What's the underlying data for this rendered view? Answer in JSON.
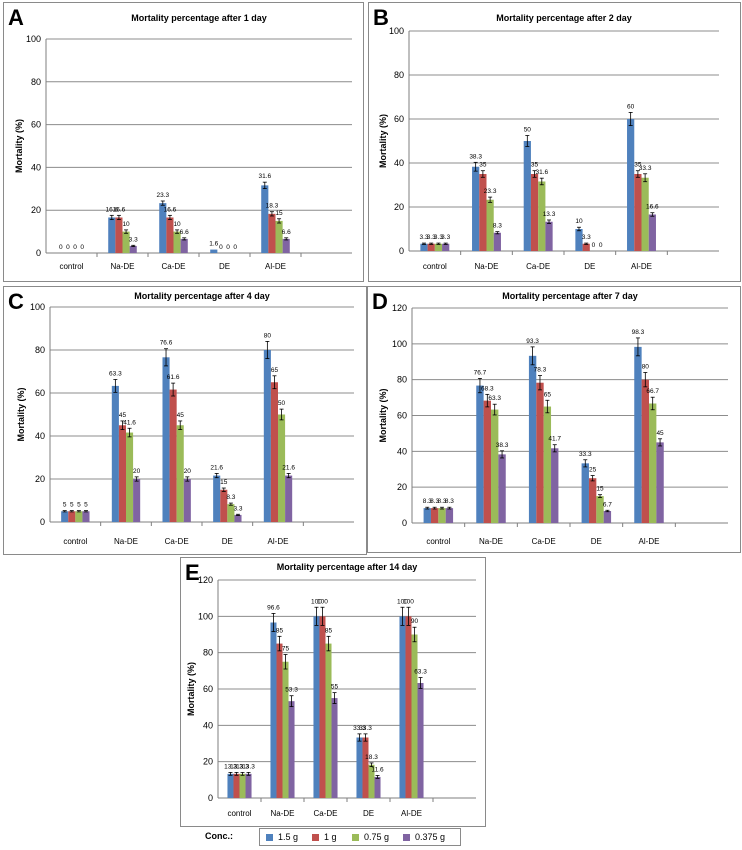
{
  "legend": {
    "title": "Conc.:",
    "items": [
      {
        "label": "1.5 g",
        "color": "#4f81bd"
      },
      {
        "label": "1 g",
        "color": "#c0504d"
      },
      {
        "label": "0.75 g",
        "color": "#9bbb59"
      },
      {
        "label": "0.375 g",
        "color": "#8064a2"
      }
    ]
  },
  "chart_data": [
    {
      "letter": "A",
      "type": "bar",
      "title": "Mortality percentage after 1 day",
      "xlabel": "",
      "ylabel": "Mortality (%)",
      "ylim": [
        0,
        100
      ],
      "yticks": [
        0,
        20,
        40,
        60,
        80,
        100
      ],
      "categories": [
        "control",
        "Na-DE",
        "Ca-DE",
        "DE",
        "Al-DE"
      ],
      "series": [
        {
          "name": "1.5 g",
          "values": [
            0,
            16.6,
            23.3,
            1.6,
            31.6
          ],
          "errors": [
            0,
            1,
            1,
            0,
            1.5
          ]
        },
        {
          "name": "1 g",
          "values": [
            0,
            16.6,
            16.6,
            0,
            18.3
          ],
          "errors": [
            0,
            1,
            1,
            0,
            1
          ]
        },
        {
          "name": "0.75 g",
          "values": [
            0,
            10,
            10,
            0,
            15
          ],
          "errors": [
            0,
            0.8,
            0.8,
            0,
            1
          ]
        },
        {
          "name": "0.375 g",
          "values": [
            0,
            3.3,
            6.6,
            0,
            6.6
          ],
          "errors": [
            0,
            0.3,
            0.5,
            0,
            0.5
          ]
        }
      ],
      "data_labels": [
        [
          "0",
          "16.6",
          "23.3",
          "1.6",
          "31.6"
        ],
        [
          "0",
          "16.6",
          "16.6",
          "0",
          "18.3"
        ],
        [
          "0",
          "10",
          "10",
          "0",
          "15"
        ],
        [
          "0",
          "3.3",
          "6.6",
          "0",
          "6.6"
        ]
      ]
    },
    {
      "letter": "B",
      "type": "bar",
      "title": "Mortality percentage after 2 day",
      "xlabel": "",
      "ylabel": "Mortality (%)",
      "ylim": [
        0,
        100
      ],
      "yticks": [
        0,
        20,
        40,
        60,
        80,
        100
      ],
      "categories": [
        "control",
        "Na-DE",
        "Ca-DE",
        "DE",
        "Al-DE"
      ],
      "series": [
        {
          "name": "1.5 g",
          "values": [
            3.3,
            38.3,
            50,
            10,
            60
          ],
          "errors": [
            0.3,
            2,
            2.5,
            0.8,
            3
          ]
        },
        {
          "name": "1 g",
          "values": [
            3.3,
            35,
            35,
            3.3,
            35
          ],
          "errors": [
            0.3,
            1.5,
            1.5,
            0.3,
            1.5
          ]
        },
        {
          "name": "0.75 g",
          "values": [
            3.3,
            23.3,
            31.6,
            0,
            33.3
          ],
          "errors": [
            0.3,
            1.2,
            1.5,
            0,
            1.8
          ]
        },
        {
          "name": "0.375 g",
          "values": [
            3.3,
            8.3,
            13.3,
            0,
            16.6
          ],
          "errors": [
            0.3,
            0.5,
            0.8,
            0,
            0.8
          ]
        }
      ],
      "data_labels": [
        [
          "3.3",
          "38.3",
          "50",
          "10",
          "60"
        ],
        [
          "3.3",
          "35",
          "35",
          "3.3",
          "35"
        ],
        [
          "3.3",
          "23.3",
          "31.6",
          "0",
          "33.3"
        ],
        [
          "3.3",
          "8.3",
          "13.3",
          "0",
          "16.6"
        ]
      ]
    },
    {
      "letter": "C",
      "type": "bar",
      "title": "Mortality percentage after 4 day",
      "xlabel": "",
      "ylabel": "Mortality (%)",
      "ylim": [
        0,
        100
      ],
      "yticks": [
        0,
        20,
        40,
        60,
        80,
        100
      ],
      "categories": [
        "control",
        "Na-DE",
        "Ca-DE",
        "DE",
        "Al-DE"
      ],
      "series": [
        {
          "name": "1.5 g",
          "values": [
            5,
            63.3,
            76.6,
            21.6,
            80
          ],
          "errors": [
            0.3,
            3,
            4,
            1,
            4
          ]
        },
        {
          "name": "1 g",
          "values": [
            5,
            45,
            61.6,
            15,
            65
          ],
          "errors": [
            0.3,
            2,
            3,
            0.8,
            3
          ]
        },
        {
          "name": "0.75 g",
          "values": [
            5,
            41.6,
            45,
            8.3,
            50
          ],
          "errors": [
            0.3,
            2,
            2,
            0.5,
            2.5
          ]
        },
        {
          "name": "0.375 g",
          "values": [
            5,
            20,
            20,
            3.3,
            21.6
          ],
          "errors": [
            0.3,
            1,
            1,
            0.3,
            1
          ]
        }
      ],
      "data_labels": [
        [
          "5",
          "63.3",
          "76.6",
          "21.6",
          "80"
        ],
        [
          "5",
          "45",
          "61.6",
          "15",
          "65"
        ],
        [
          "5",
          "41.6",
          "45",
          "8.3",
          "50"
        ],
        [
          "5",
          "20",
          "20",
          "3.3",
          "21.6"
        ]
      ]
    },
    {
      "letter": "D",
      "type": "bar",
      "title": "Mortality percentage after 7 day",
      "xlabel": "",
      "ylabel": "Mortality (%)",
      "ylim": [
        0,
        120
      ],
      "yticks": [
        0,
        20,
        40,
        60,
        80,
        100,
        120
      ],
      "categories": [
        "control",
        "Na-DE",
        "Ca-DE",
        "DE",
        "Al-DE"
      ],
      "series": [
        {
          "name": "1.5 g",
          "values": [
            8.3,
            76.7,
            93.3,
            33.3,
            98.3
          ],
          "errors": [
            0.5,
            4,
            5,
            2,
            5
          ]
        },
        {
          "name": "1 g",
          "values": [
            8.3,
            68.3,
            78.3,
            25,
            80
          ],
          "errors": [
            0.5,
            3.5,
            4,
            1.5,
            4
          ]
        },
        {
          "name": "0.75 g",
          "values": [
            8.3,
            63.3,
            65,
            15,
            66.7
          ],
          "errors": [
            0.5,
            3,
            3.5,
            0.8,
            3.5
          ]
        },
        {
          "name": "0.375 g",
          "values": [
            8.3,
            38.3,
            41.7,
            6.7,
            45
          ],
          "errors": [
            0.5,
            2,
            2,
            0.4,
            2
          ]
        }
      ],
      "data_labels": [
        [
          "8.3",
          "76.7",
          "93.3",
          "33.3",
          "98.3"
        ],
        [
          "8.3",
          "68.3",
          "78.3",
          "25",
          "80"
        ],
        [
          "8.3",
          "63.3",
          "65",
          "15",
          "66.7"
        ],
        [
          "8.3",
          "38.3",
          "41.7",
          "6.7",
          "45"
        ]
      ]
    },
    {
      "letter": "E",
      "type": "bar",
      "title": "Mortality percentage after 14 day",
      "xlabel": "",
      "ylabel": "Mortality (%)",
      "ylim": [
        0,
        120
      ],
      "yticks": [
        0,
        20,
        40,
        60,
        80,
        100,
        120
      ],
      "categories": [
        "control",
        "Na-DE",
        "Ca-DE",
        "DE",
        "Al-DE"
      ],
      "series": [
        {
          "name": "1.5 g",
          "values": [
            13.3,
            96.6,
            100,
            33.3,
            100
          ],
          "errors": [
            0.8,
            5,
            5,
            2,
            5
          ]
        },
        {
          "name": "1 g",
          "values": [
            13.3,
            85,
            100,
            33.3,
            100
          ],
          "errors": [
            0.8,
            4,
            5,
            2,
            5
          ]
        },
        {
          "name": "0.75 g",
          "values": [
            13.3,
            75,
            85,
            18.3,
            90
          ],
          "errors": [
            0.8,
            4,
            4,
            1,
            4
          ]
        },
        {
          "name": "0.375 g",
          "values": [
            13.3,
            53.3,
            55,
            11.6,
            63.3
          ],
          "errors": [
            0.8,
            3,
            3,
            0.8,
            3
          ]
        }
      ],
      "data_labels": [
        [
          "13.3",
          "96.6",
          "100",
          "33.3",
          "100"
        ],
        [
          "13.3",
          "85",
          "100",
          "33.3",
          "100"
        ],
        [
          "13.3",
          "75",
          "85",
          "18.3",
          "90"
        ],
        [
          "13.3",
          "53.3",
          "55",
          "11.6",
          "63.3"
        ]
      ]
    }
  ]
}
